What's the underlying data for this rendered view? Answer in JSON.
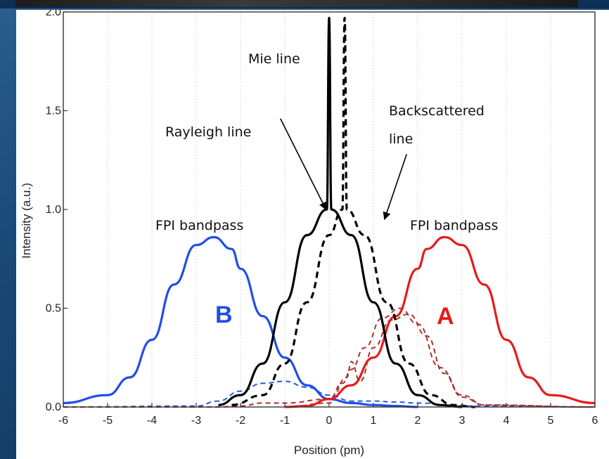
{
  "chart_data": {
    "type": "line",
    "xlabel": "Position (pm)",
    "ylabel": "Intensity (a.u.)",
    "xlim": [
      -6,
      6
    ],
    "ylim": [
      0,
      2.0
    ],
    "x_ticks": [
      "-6",
      "-5",
      "-4",
      "-3",
      "-2",
      "-1",
      "0",
      "1",
      "2",
      "3",
      "4",
      "5",
      "6"
    ],
    "y_ticks": [
      "0.0",
      "0.5",
      "1.0",
      "1.5",
      "2.0"
    ],
    "grid": "vertical dotted",
    "series": [
      {
        "name": "FPI bandpass",
        "label_letter": "B",
        "color": "#1f4fe6",
        "style": "solid",
        "x": [
          -6,
          -5,
          -4.5,
          -4,
          -3.5,
          -3,
          -2.6,
          -2.2,
          -2,
          -1.5,
          -1,
          -0.5,
          0,
          0.5,
          1,
          1.5,
          2
        ],
        "y": [
          0.02,
          0.06,
          0.15,
          0.34,
          0.62,
          0.82,
          0.86,
          0.8,
          0.7,
          0.46,
          0.25,
          0.11,
          0.04,
          0.02,
          0.01,
          0.005,
          0
        ]
      },
      {
        "name": "FPI bandpass",
        "label_letter": "A",
        "color": "#e61b1b",
        "style": "solid",
        "x": [
          -1,
          -0.5,
          0,
          0.5,
          1,
          1.5,
          2,
          2.2,
          2.6,
          3,
          3.5,
          4,
          4.5,
          5,
          6
        ],
        "y": [
          0,
          0.005,
          0.04,
          0.11,
          0.25,
          0.46,
          0.7,
          0.8,
          0.86,
          0.82,
          0.62,
          0.34,
          0.15,
          0.06,
          0.02
        ]
      },
      {
        "name": "Rayleigh line",
        "color": "#000000",
        "style": "solid",
        "x": [
          -2.5,
          -2,
          -1.5,
          -1,
          -0.5,
          -0.05,
          0,
          0.05,
          0.5,
          1,
          1.5,
          2,
          2.5,
          3
        ],
        "y": [
          0.01,
          0.06,
          0.22,
          0.53,
          0.87,
          1.0,
          1.97,
          1.0,
          0.87,
          0.53,
          0.22,
          0.06,
          0.01,
          0
        ]
      },
      {
        "name": "Backscattered line",
        "color": "#000000",
        "style": "dashed",
        "x": [
          -2.2,
          -1.5,
          -1,
          -0.5,
          0,
          0.3,
          0.35,
          0.4,
          0.8,
          1.3,
          1.8,
          2.3,
          2.8,
          3.3
        ],
        "y": [
          0.01,
          0.06,
          0.22,
          0.53,
          0.87,
          1.0,
          1.97,
          1.0,
          0.87,
          0.53,
          0.22,
          0.06,
          0.01,
          0
        ]
      },
      {
        "name": "",
        "color": "#2a58e0",
        "style": "dashed",
        "x": [
          -6,
          -3,
          -2.5,
          -2,
          -1.5,
          -1,
          -0.5,
          0,
          0.5,
          1,
          1.5,
          2,
          3,
          6
        ],
        "y": [
          0,
          0.005,
          0.03,
          0.08,
          0.12,
          0.13,
          0.1,
          0.06,
          0.03,
          0.03,
          0.025,
          0.02,
          0.005,
          0
        ]
      },
      {
        "name": "",
        "color": "#a83030",
        "style": "dashed",
        "x": [
          -6,
          -2.5,
          -2,
          -1.5,
          -1,
          0,
          0.3,
          0.5,
          0.8,
          1.2,
          1.6,
          2,
          2.5,
          3,
          3.5,
          6
        ],
        "y": [
          0,
          0,
          0.005,
          0.02,
          0.02,
          0.04,
          0.12,
          0.19,
          0.3,
          0.45,
          0.5,
          0.42,
          0.2,
          0.06,
          0.01,
          0
        ]
      },
      {
        "name": "",
        "color": "#a83030",
        "style": "dashed",
        "x": [
          -1,
          0,
          0.4,
          0.5,
          0.7,
          1,
          1.4,
          1.8,
          2.2,
          2.6,
          3,
          3.5,
          6
        ],
        "y": [
          0,
          0.02,
          0.15,
          0.23,
          0.13,
          0.3,
          0.44,
          0.47,
          0.36,
          0.17,
          0.05,
          0.01,
          0
        ]
      }
    ],
    "annotations": [
      {
        "id": "mie",
        "text": "Mie line"
      },
      {
        "id": "rayleigh",
        "text": "Rayleigh line"
      },
      {
        "id": "back1",
        "text": "Backscattered"
      },
      {
        "id": "back2",
        "text": "line"
      },
      {
        "id": "fpiL",
        "text": "FPI bandpass"
      },
      {
        "id": "fpiR",
        "text": "FPI bandpass"
      },
      {
        "id": "B",
        "text": "B"
      },
      {
        "id": "A",
        "text": "A"
      }
    ]
  }
}
